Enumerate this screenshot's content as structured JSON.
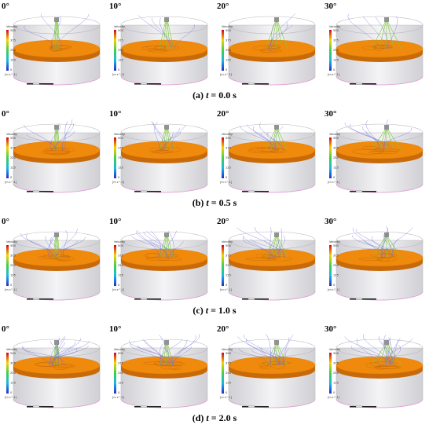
{
  "colorbar": {
    "title": "Velocity",
    "ticks": [
      "500",
      "375",
      "250",
      "125",
      "0"
    ],
    "unit": "[m s^-1]"
  },
  "angles": [
    "0°",
    "10°",
    "20°",
    "30°"
  ],
  "rows": [
    {
      "caption_prefix": "(a) ",
      "caption_var": "t",
      "caption_suffix": " = 0.0 s"
    },
    {
      "caption_prefix": "(b) ",
      "caption_var": "t",
      "caption_suffix": " = 0.5 s"
    },
    {
      "caption_prefix": "(c) ",
      "caption_var": "t",
      "caption_suffix": " = 1.0 s"
    },
    {
      "caption_prefix": "(d) ",
      "caption_var": "t",
      "caption_suffix": " = 2.0 s"
    }
  ],
  "colors": {
    "liquid": "#f08a0c",
    "liquid_dark": "#c96a08",
    "cylinder_fill": "#e9e9ec",
    "cylinder_edge": "#b9b9bf",
    "streamline": "#6f6fd8",
    "jet": "#7ec83a"
  }
}
